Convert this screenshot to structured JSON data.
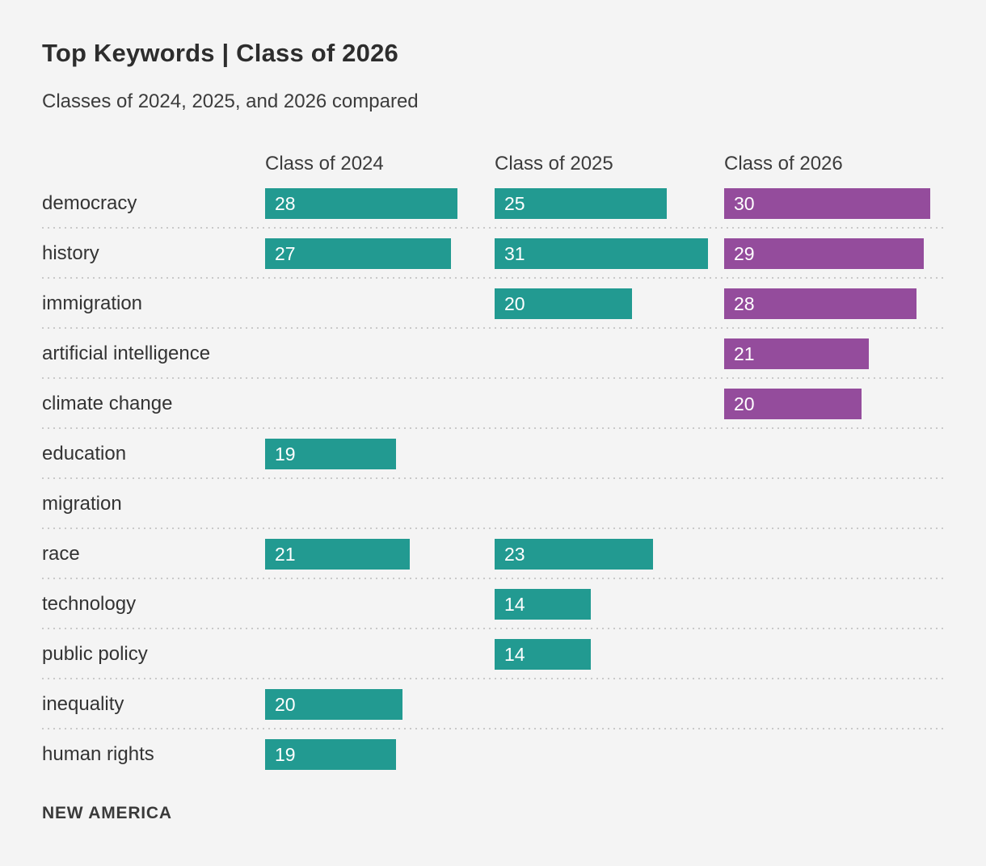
{
  "header": {
    "title": "Top Keywords | Class of 2026",
    "subtitle": "Classes of 2024, 2025, and 2026 compared"
  },
  "footer": {
    "brand": "NEW AMERICA"
  },
  "colors": {
    "teal": "#229a91",
    "purple": "#944c9c",
    "background": "#f4f4f4",
    "text_dark": "#2d2d2d",
    "bar_value_text": "#ffffff",
    "divider": "#c9c9c9"
  },
  "chart_data": {
    "type": "bar",
    "orientation": "horizontal",
    "title": "Top Keywords | Class of 2026",
    "subtitle": "Classes of 2024, 2025, and 2026 compared",
    "categories": [
      "democracy",
      "history",
      "immigration",
      "artificial intelligence",
      "climate change",
      "education",
      "migration",
      "race",
      "technology",
      "public policy",
      "inequality",
      "human rights"
    ],
    "series": [
      {
        "name": "Class of 2024",
        "color": "#229a91",
        "values": [
          28,
          27,
          null,
          null,
          null,
          19,
          null,
          21,
          null,
          null,
          20,
          19
        ]
      },
      {
        "name": "Class of 2025",
        "color": "#229a91",
        "values": [
          25,
          31,
          20,
          null,
          null,
          null,
          null,
          23,
          14,
          14,
          null,
          null
        ]
      },
      {
        "name": "Class of 2026",
        "color": "#944c9c",
        "values": [
          30,
          29,
          28,
          21,
          20,
          null,
          null,
          null,
          null,
          null,
          null,
          null
        ]
      }
    ],
    "value_labels": "inside-left",
    "xlim": [
      0,
      31
    ],
    "grid": false,
    "legend_position": "column-headers",
    "source_label": "NEW AMERICA"
  }
}
